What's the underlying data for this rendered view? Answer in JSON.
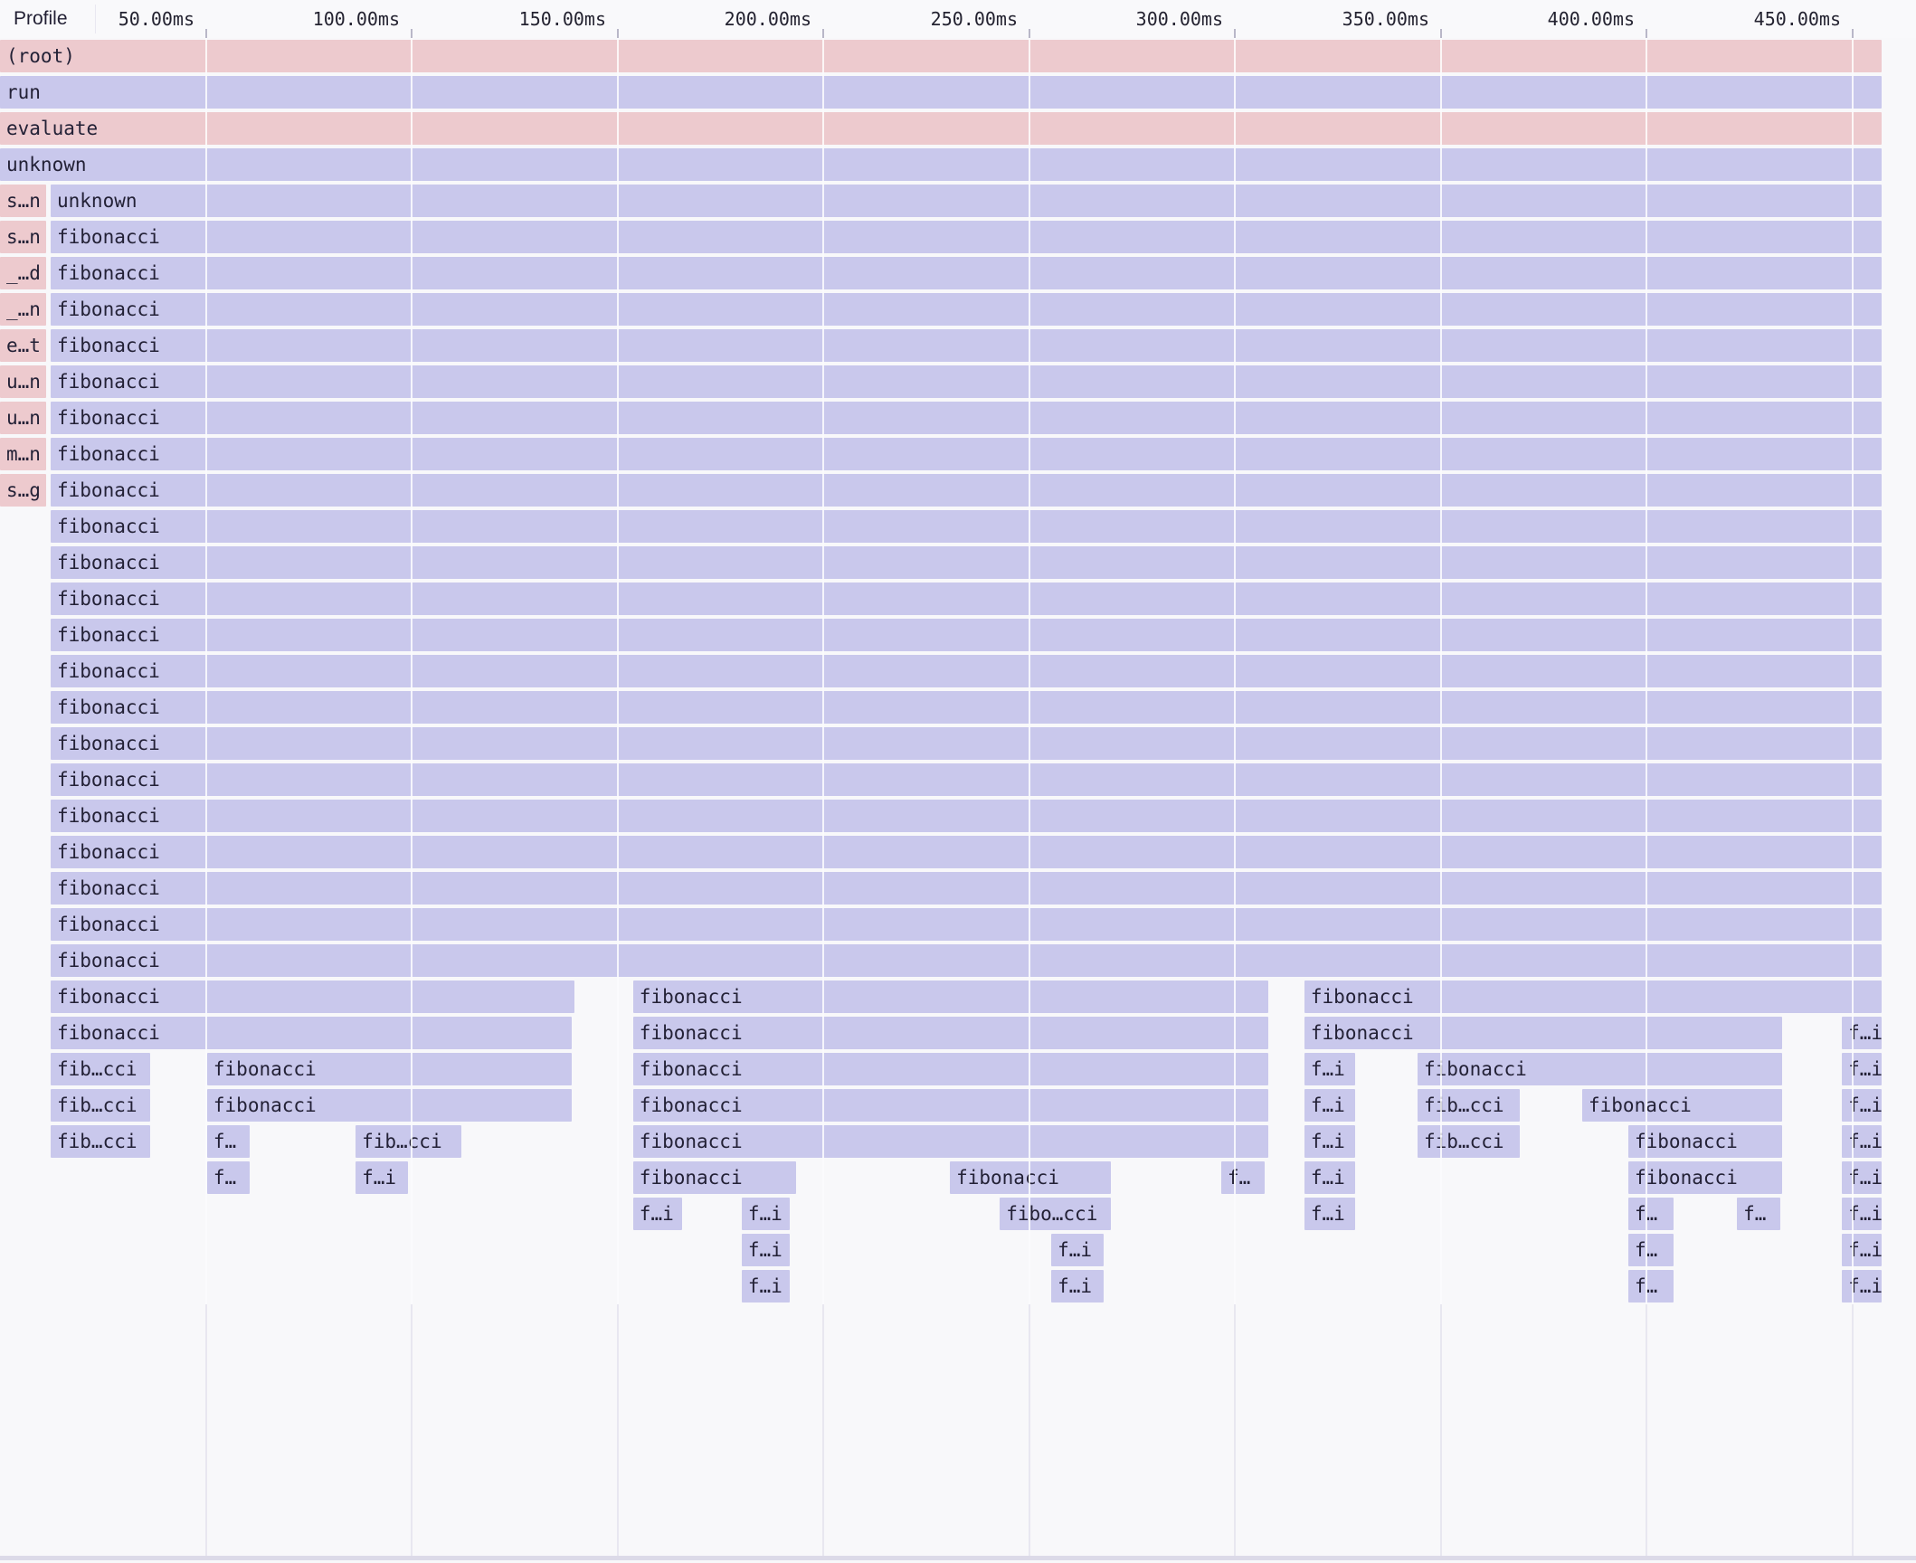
{
  "header": {
    "profile_label": "Profile",
    "ticks": [
      {
        "ms": 50,
        "label": "50.00ms"
      },
      {
        "ms": 100,
        "label": "100.00ms"
      },
      {
        "ms": 150,
        "label": "150.00ms"
      },
      {
        "ms": 200,
        "label": "200.00ms"
      },
      {
        "ms": 250,
        "label": "250.00ms"
      },
      {
        "ms": 300,
        "label": "300.00ms"
      },
      {
        "ms": 350,
        "label": "350.00ms"
      },
      {
        "ms": 400,
        "label": "400.00ms"
      },
      {
        "ms": 450,
        "label": "450.00ms"
      }
    ]
  },
  "colors": {
    "warm_frame": "#edcace",
    "cool_frame": "#c9c8ec",
    "frame_text": "#232136",
    "grid_bg_line": "#e8e7f0",
    "grid_over_line": "rgba(255,255,255,0.82)",
    "tick_mark": "#b9b7c8",
    "page_bg": "#f8f8fa",
    "bottom_strip": "#dcdae8"
  },
  "flame": {
    "total_ms": 457.6,
    "row_count": 35,
    "frames": [
      {
        "row": 1,
        "t0": 0,
        "t1": 457.6,
        "label": "(root)",
        "tone": "warm"
      },
      {
        "row": 2,
        "t0": 0,
        "t1": 457.6,
        "label": "run",
        "tone": "cool"
      },
      {
        "row": 3,
        "t0": 0,
        "t1": 457.6,
        "label": "evaluate",
        "tone": "warm"
      },
      {
        "row": 4,
        "t0": 0,
        "t1": 457.6,
        "label": "unknown",
        "tone": "cool"
      },
      {
        "row": 5,
        "t0": 0,
        "t1": 11.6,
        "label": "s…n",
        "tone": "warm"
      },
      {
        "row": 5,
        "t0": 12.3,
        "t1": 457.6,
        "label": "unknown",
        "tone": "cool"
      },
      {
        "row": 6,
        "t0": 0,
        "t1": 11.6,
        "label": "s…n",
        "tone": "warm"
      },
      {
        "row": 6,
        "t0": 12.3,
        "t1": 457.6,
        "label": "fibonacci",
        "tone": "cool"
      },
      {
        "row": 7,
        "t0": 0,
        "t1": 11.6,
        "label": "_…d",
        "tone": "warm"
      },
      {
        "row": 7,
        "t0": 12.3,
        "t1": 457.6,
        "label": "fibonacci",
        "tone": "cool"
      },
      {
        "row": 8,
        "t0": 0,
        "t1": 11.6,
        "label": "_…n",
        "tone": "warm"
      },
      {
        "row": 8,
        "t0": 12.3,
        "t1": 457.6,
        "label": "fibonacci",
        "tone": "cool"
      },
      {
        "row": 9,
        "t0": 0,
        "t1": 11.6,
        "label": "e…t",
        "tone": "warm"
      },
      {
        "row": 9,
        "t0": 12.3,
        "t1": 457.6,
        "label": "fibonacci",
        "tone": "cool"
      },
      {
        "row": 10,
        "t0": 0,
        "t1": 11.6,
        "label": "u…n",
        "tone": "warm"
      },
      {
        "row": 10,
        "t0": 12.3,
        "t1": 457.6,
        "label": "fibonacci",
        "tone": "cool"
      },
      {
        "row": 11,
        "t0": 0,
        "t1": 11.6,
        "label": "u…n",
        "tone": "warm"
      },
      {
        "row": 11,
        "t0": 12.3,
        "t1": 457.6,
        "label": "fibonacci",
        "tone": "cool"
      },
      {
        "row": 12,
        "t0": 0,
        "t1": 11.6,
        "label": "m…n",
        "tone": "warm"
      },
      {
        "row": 12,
        "t0": 12.3,
        "t1": 457.6,
        "label": "fibonacci",
        "tone": "cool"
      },
      {
        "row": 13,
        "t0": 0,
        "t1": 11.6,
        "label": "s…g",
        "tone": "warm"
      },
      {
        "row": 13,
        "t0": 12.3,
        "t1": 457.6,
        "label": "fibonacci",
        "tone": "cool"
      },
      {
        "row": 14,
        "t0": 12.3,
        "t1": 457.6,
        "label": "fibonacci",
        "tone": "cool"
      },
      {
        "row": 15,
        "t0": 12.3,
        "t1": 457.6,
        "label": "fibonacci",
        "tone": "cool"
      },
      {
        "row": 16,
        "t0": 12.3,
        "t1": 457.6,
        "label": "fibonacci",
        "tone": "cool"
      },
      {
        "row": 17,
        "t0": 12.3,
        "t1": 457.6,
        "label": "fibonacci",
        "tone": "cool"
      },
      {
        "row": 18,
        "t0": 12.3,
        "t1": 457.6,
        "label": "fibonacci",
        "tone": "cool"
      },
      {
        "row": 19,
        "t0": 12.3,
        "t1": 457.6,
        "label": "fibonacci",
        "tone": "cool"
      },
      {
        "row": 20,
        "t0": 12.3,
        "t1": 457.6,
        "label": "fibonacci",
        "tone": "cool"
      },
      {
        "row": 21,
        "t0": 12.3,
        "t1": 457.6,
        "label": "fibonacci",
        "tone": "cool"
      },
      {
        "row": 22,
        "t0": 12.3,
        "t1": 457.6,
        "label": "fibonacci",
        "tone": "cool"
      },
      {
        "row": 23,
        "t0": 12.3,
        "t1": 457.6,
        "label": "fibonacci",
        "tone": "cool"
      },
      {
        "row": 24,
        "t0": 12.3,
        "t1": 457.6,
        "label": "fibonacci",
        "tone": "cool"
      },
      {
        "row": 25,
        "t0": 12.3,
        "t1": 457.6,
        "label": "fibonacci",
        "tone": "cool"
      },
      {
        "row": 26,
        "t0": 12.3,
        "t1": 457.6,
        "label": "fibonacci",
        "tone": "cool"
      },
      {
        "row": 27,
        "t0": 12.3,
        "t1": 140.0,
        "label": "fibonacci",
        "tone": "cool"
      },
      {
        "row": 27,
        "t0": 153.8,
        "t1": 308.6,
        "label": "fibonacci",
        "tone": "cool"
      },
      {
        "row": 27,
        "t0": 316.9,
        "t1": 457.6,
        "label": "fibonacci",
        "tone": "cool"
      },
      {
        "row": 28,
        "t0": 12.3,
        "t1": 139.3,
        "label": "fibonacci",
        "tone": "cool"
      },
      {
        "row": 28,
        "t0": 153.8,
        "t1": 308.6,
        "label": "fibonacci",
        "tone": "cool"
      },
      {
        "row": 28,
        "t0": 316.9,
        "t1": 433.4,
        "label": "fibonacci",
        "tone": "cool"
      },
      {
        "row": 28,
        "t0": 447.5,
        "t1": 457.6,
        "label": "f…i",
        "tone": "cool"
      },
      {
        "row": 29,
        "t0": 12.3,
        "t1": 36.9,
        "label": "fib…cci",
        "tone": "cool"
      },
      {
        "row": 29,
        "t0": 50.3,
        "t1": 139.3,
        "label": "fibonacci",
        "tone": "cool"
      },
      {
        "row": 29,
        "t0": 153.8,
        "t1": 308.6,
        "label": "fibonacci",
        "tone": "cool"
      },
      {
        "row": 29,
        "t0": 316.9,
        "t1": 329.7,
        "label": "f…i",
        "tone": "cool"
      },
      {
        "row": 29,
        "t0": 344.4,
        "t1": 433.4,
        "label": "fibonacci",
        "tone": "cool"
      },
      {
        "row": 29,
        "t0": 447.5,
        "t1": 457.6,
        "label": "f…i",
        "tone": "cool"
      },
      {
        "row": 30,
        "t0": 12.3,
        "t1": 36.9,
        "label": "fib…cci",
        "tone": "cool"
      },
      {
        "row": 30,
        "t0": 50.3,
        "t1": 139.3,
        "label": "fibonacci",
        "tone": "cool"
      },
      {
        "row": 30,
        "t0": 153.8,
        "t1": 308.6,
        "label": "fibonacci",
        "tone": "cool"
      },
      {
        "row": 30,
        "t0": 316.9,
        "t1": 329.7,
        "label": "f…i",
        "tone": "cool"
      },
      {
        "row": 30,
        "t0": 344.4,
        "t1": 369.7,
        "label": "fib…cci",
        "tone": "cool"
      },
      {
        "row": 30,
        "t0": 384.4,
        "t1": 433.4,
        "label": "fibonacci",
        "tone": "cool"
      },
      {
        "row": 30,
        "t0": 447.5,
        "t1": 457.6,
        "label": "f…i",
        "tone": "cool"
      },
      {
        "row": 31,
        "t0": 12.3,
        "t1": 36.9,
        "label": "fib…cci",
        "tone": "cool"
      },
      {
        "row": 31,
        "t0": 50.3,
        "t1": 61.1,
        "label": "f…",
        "tone": "cool"
      },
      {
        "row": 31,
        "t0": 86.4,
        "t1": 112.5,
        "label": "fib…cci",
        "tone": "cool"
      },
      {
        "row": 31,
        "t0": 153.8,
        "t1": 308.6,
        "label": "fibonacci",
        "tone": "cool"
      },
      {
        "row": 31,
        "t0": 316.9,
        "t1": 329.7,
        "label": "f…i",
        "tone": "cool"
      },
      {
        "row": 31,
        "t0": 344.4,
        "t1": 369.7,
        "label": "fib…cci",
        "tone": "cool"
      },
      {
        "row": 31,
        "t0": 395.6,
        "t1": 433.4,
        "label": "fibonacci",
        "tone": "cool"
      },
      {
        "row": 31,
        "t0": 447.5,
        "t1": 457.6,
        "label": "f…i",
        "tone": "cool"
      },
      {
        "row": 32,
        "t0": 50.3,
        "t1": 61.1,
        "label": "f…",
        "tone": "cool"
      },
      {
        "row": 32,
        "t0": 86.4,
        "t1": 99.6,
        "label": "f…i",
        "tone": "cool"
      },
      {
        "row": 32,
        "t0": 153.8,
        "t1": 193.8,
        "label": "fibonacci",
        "tone": "cool"
      },
      {
        "row": 32,
        "t0": 230.8,
        "t1": 270.3,
        "label": "fibonacci",
        "tone": "cool"
      },
      {
        "row": 32,
        "t0": 296.7,
        "t1": 307.7,
        "label": "f…",
        "tone": "cool"
      },
      {
        "row": 32,
        "t0": 316.9,
        "t1": 329.7,
        "label": "f…i",
        "tone": "cool"
      },
      {
        "row": 32,
        "t0": 395.6,
        "t1": 433.4,
        "label": "fibonacci",
        "tone": "cool"
      },
      {
        "row": 32,
        "t0": 447.5,
        "t1": 457.6,
        "label": "f…i",
        "tone": "cool"
      },
      {
        "row": 33,
        "t0": 153.8,
        "t1": 166.2,
        "label": "f…i",
        "tone": "cool"
      },
      {
        "row": 33,
        "t0": 180.2,
        "t1": 192.3,
        "label": "f…i",
        "tone": "cool"
      },
      {
        "row": 33,
        "t0": 242.9,
        "t1": 270.3,
        "label": "fibo…cci",
        "tone": "cool"
      },
      {
        "row": 33,
        "t0": 316.9,
        "t1": 329.7,
        "label": "f…i",
        "tone": "cool"
      },
      {
        "row": 33,
        "t0": 395.6,
        "t1": 407.0,
        "label": "f…",
        "tone": "cool"
      },
      {
        "row": 33,
        "t0": 422.0,
        "t1": 433.0,
        "label": "f…",
        "tone": "cool"
      },
      {
        "row": 33,
        "t0": 447.5,
        "t1": 457.6,
        "label": "f…i",
        "tone": "cool"
      },
      {
        "row": 34,
        "t0": 180.2,
        "t1": 192.3,
        "label": "f…i",
        "tone": "cool"
      },
      {
        "row": 34,
        "t0": 255.4,
        "t1": 268.6,
        "label": "f…i",
        "tone": "cool"
      },
      {
        "row": 34,
        "t0": 395.6,
        "t1": 407.0,
        "label": "f…",
        "tone": "cool"
      },
      {
        "row": 34,
        "t0": 447.5,
        "t1": 457.6,
        "label": "f…i",
        "tone": "cool"
      },
      {
        "row": 35,
        "t0": 180.2,
        "t1": 192.3,
        "label": "f…i",
        "tone": "cool"
      },
      {
        "row": 35,
        "t0": 255.4,
        "t1": 268.6,
        "label": "f…i",
        "tone": "cool"
      },
      {
        "row": 35,
        "t0": 395.6,
        "t1": 407.0,
        "label": "f…",
        "tone": "cool"
      },
      {
        "row": 35,
        "t0": 447.5,
        "t1": 457.6,
        "label": "f…i",
        "tone": "cool"
      }
    ]
  }
}
